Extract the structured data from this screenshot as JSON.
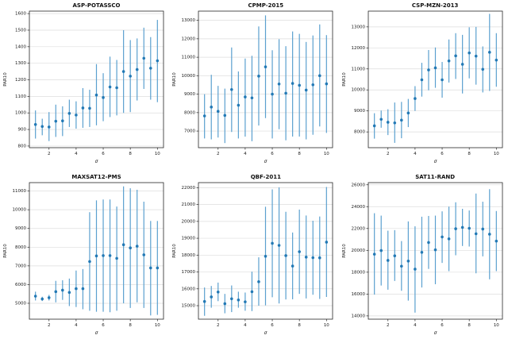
{
  "figure": {
    "background": "#ffffff",
    "marker_color": "#2279b5",
    "errorbar_color": "#5ba0cf",
    "grid_color": "#dddddd",
    "spine_color": "#262626"
  },
  "chart_data": [
    {
      "type": "scatter",
      "title": "ASP-POTASSCO",
      "xlabel": "σ",
      "ylabel": "PAR10",
      "legend": null,
      "grid": "horizontal",
      "x": [
        1,
        1.5,
        2,
        2.5,
        3,
        3.5,
        4,
        4.5,
        5,
        5.5,
        6,
        6.5,
        7,
        7.5,
        8,
        8.5,
        9,
        9.5,
        10
      ],
      "y": [
        930,
        918,
        915,
        950,
        952,
        997,
        987,
        1030,
        1028,
        1108,
        1093,
        1157,
        1152,
        1250,
        1222,
        1262,
        1330,
        1270,
        1315
      ],
      "y_err_low": [
        845,
        865,
        830,
        855,
        860,
        915,
        905,
        910,
        915,
        925,
        950,
        975,
        985,
        1000,
        1005,
        1075,
        1145,
        1080,
        1065
      ],
      "y_err_high": [
        1015,
        965,
        1005,
        1050,
        1040,
        1080,
        1070,
        1150,
        1140,
        1295,
        1240,
        1340,
        1320,
        1500,
        1440,
        1450,
        1515,
        1458,
        1562
      ],
      "xlim": [
        0.55,
        10.45
      ],
      "ylim": [
        790,
        1615
      ],
      "xticks": [
        2,
        4,
        6,
        8,
        10
      ],
      "yticks": [
        800,
        900,
        1000,
        1100,
        1200,
        1300,
        1400,
        1500,
        1600
      ]
    },
    {
      "type": "scatter",
      "title": "CPMP-2015",
      "xlabel": "σ",
      "ylabel": "PAR10",
      "legend": null,
      "grid": "horizontal",
      "x": [
        1,
        1.5,
        2,
        2.5,
        3,
        3.5,
        4,
        4.5,
        5,
        5.5,
        6,
        6.5,
        7,
        7.5,
        8,
        8.5,
        9,
        9.5,
        10
      ],
      "y": [
        7820,
        8300,
        8070,
        7850,
        9250,
        8400,
        8850,
        8800,
        9980,
        10480,
        9000,
        9550,
        9050,
        9580,
        9480,
        9220,
        9510,
        10000,
        9560
      ],
      "y_err_low": [
        6600,
        6550,
        6650,
        6350,
        6950,
        6600,
        6700,
        6450,
        7300,
        7700,
        6600,
        7100,
        6500,
        6700,
        6700,
        6550,
        6800,
        7250,
        6900
      ],
      "y_err_high": [
        9000,
        10050,
        9450,
        9300,
        11530,
        10230,
        10930,
        11080,
        12670,
        13270,
        11380,
        11980,
        11600,
        12400,
        12270,
        11830,
        12180,
        12780,
        12200
      ],
      "xlim": [
        0.55,
        10.45
      ],
      "ylim": [
        6100,
        13500
      ],
      "xticks": [
        2,
        4,
        6,
        8,
        10
      ],
      "yticks": [
        7000,
        8000,
        9000,
        10000,
        11000,
        12000,
        13000
      ]
    },
    {
      "type": "scatter",
      "title": "CSP-MZN-2013",
      "xlabel": "σ",
      "ylabel": "PAR10",
      "legend": null,
      "grid": "horizontal",
      "x": [
        1,
        1.5,
        2,
        2.5,
        3,
        3.5,
        4,
        4.5,
        5,
        5.5,
        6,
        6.5,
        7,
        7.5,
        8,
        8.5,
        9,
        9.5,
        10
      ],
      "y": [
        8290,
        8600,
        8460,
        8430,
        8560,
        8900,
        9590,
        10480,
        10950,
        11050,
        10480,
        11380,
        11620,
        11220,
        11760,
        11610,
        10980,
        11790,
        11420
      ],
      "y_err_low": [
        7680,
        8200,
        7850,
        7480,
        7700,
        8230,
        9000,
        9680,
        9980,
        10100,
        9630,
        10350,
        10520,
        9830,
        10550,
        10250,
        9880,
        9950,
        10150
      ],
      "y_err_high": [
        8890,
        9020,
        9080,
        9400,
        9430,
        9570,
        10180,
        11290,
        11900,
        12020,
        11330,
        12400,
        12700,
        12620,
        12980,
        13000,
        12070,
        13620,
        12700
      ],
      "xlim": [
        0.55,
        10.45
      ],
      "ylim": [
        7250,
        13750
      ],
      "xticks": [
        2,
        4,
        6,
        8,
        10
      ],
      "yticks": [
        8000,
        9000,
        10000,
        11000,
        12000,
        13000
      ]
    },
    {
      "type": "scatter",
      "title": "MAXSAT12-PMS",
      "xlabel": "σ",
      "ylabel": "PAR10",
      "legend": null,
      "grid": "horizontal",
      "x": [
        1,
        1.5,
        2,
        2.5,
        3,
        3.5,
        4,
        4.5,
        5,
        5.5,
        6,
        6.5,
        7,
        7.5,
        8,
        8.5,
        9,
        9.5,
        10
      ],
      "y": [
        5380,
        5230,
        5300,
        5620,
        5700,
        5580,
        5780,
        5780,
        7230,
        7530,
        7550,
        7550,
        7400,
        8130,
        7960,
        8050,
        7590,
        6890,
        6890
      ],
      "y_err_low": [
        5150,
        5120,
        5150,
        5050,
        5180,
        4850,
        4800,
        4680,
        4600,
        4550,
        4550,
        4520,
        4600,
        5000,
        4750,
        5050,
        4750,
        4350,
        4380
      ],
      "y_err_high": [
        5620,
        5350,
        5450,
        6200,
        6230,
        6320,
        6750,
        6830,
        9870,
        10500,
        10550,
        10550,
        10170,
        11250,
        11150,
        11070,
        10430,
        9400,
        9400
      ],
      "xlim": [
        0.55,
        10.45
      ],
      "ylim": [
        4150,
        11450
      ],
      "xticks": [
        2,
        4,
        6,
        8,
        10
      ],
      "yticks": [
        5000,
        6000,
        7000,
        8000,
        9000,
        10000,
        11000
      ]
    },
    {
      "type": "scatter",
      "title": "QBF-2011",
      "xlabel": "σ",
      "ylabel": "PAR10",
      "legend": null,
      "grid": "horizontal",
      "x": [
        1,
        1.5,
        2,
        2.5,
        3,
        3.5,
        4,
        4.5,
        5,
        5.5,
        6,
        6.5,
        7,
        7.5,
        8,
        8.5,
        9,
        9.5,
        10
      ],
      "y": [
        15250,
        15520,
        15810,
        15120,
        15410,
        15340,
        15230,
        15830,
        16420,
        17930,
        18700,
        18580,
        17970,
        17350,
        18200,
        17880,
        17850,
        17840,
        18770
      ],
      "y_err_low": [
        14400,
        14880,
        15270,
        14550,
        14620,
        14880,
        14700,
        14680,
        15000,
        15020,
        15500,
        15130,
        15370,
        15380,
        15700,
        15430,
        15650,
        15400,
        15520
      ],
      "y_err_high": [
        16080,
        16170,
        16370,
        15700,
        16200,
        15830,
        15780,
        17020,
        17870,
        20870,
        21900,
        22020,
        20570,
        19340,
        20700,
        20350,
        20040,
        20290,
        22040
      ],
      "xlim": [
        0.55,
        10.45
      ],
      "ylim": [
        14200,
        22300
      ],
      "xticks": [
        2,
        4,
        6,
        8,
        10
      ],
      "yticks": [
        15000,
        16000,
        17000,
        18000,
        19000,
        20000,
        21000,
        22000
      ]
    },
    {
      "type": "scatter",
      "title": "SAT11-RAND",
      "xlabel": "σ",
      "ylabel": "PAR10",
      "legend": null,
      "grid": "horizontal",
      "x": [
        1,
        1.5,
        2,
        2.5,
        3,
        3.5,
        4,
        4.5,
        5,
        5.5,
        6,
        6.5,
        7,
        7.5,
        8,
        8.5,
        9,
        9.5,
        10
      ],
      "y": [
        19650,
        19980,
        19080,
        19500,
        18550,
        19020,
        18280,
        19820,
        20720,
        20050,
        21230,
        21050,
        21980,
        22100,
        22020,
        21520,
        21950,
        21480,
        20850
      ],
      "y_err_low": [
        15950,
        16780,
        16400,
        17200,
        16300,
        15400,
        14300,
        16600,
        18300,
        16900,
        18850,
        18100,
        19550,
        20400,
        20350,
        17900,
        19450,
        17350,
        18100
      ],
      "y_err_high": [
        23400,
        23180,
        21800,
        21850,
        20850,
        22650,
        22200,
        23080,
        23150,
        23180,
        23570,
        24000,
        24400,
        23800,
        23650,
        25200,
        24450,
        25600,
        23600
      ],
      "xlim": [
        0.55,
        10.45
      ],
      "ylim": [
        13700,
        26200
      ],
      "xticks": [
        2,
        4,
        6,
        8,
        10
      ],
      "yticks": [
        14000,
        16000,
        18000,
        20000,
        22000,
        24000,
        26000
      ]
    }
  ]
}
